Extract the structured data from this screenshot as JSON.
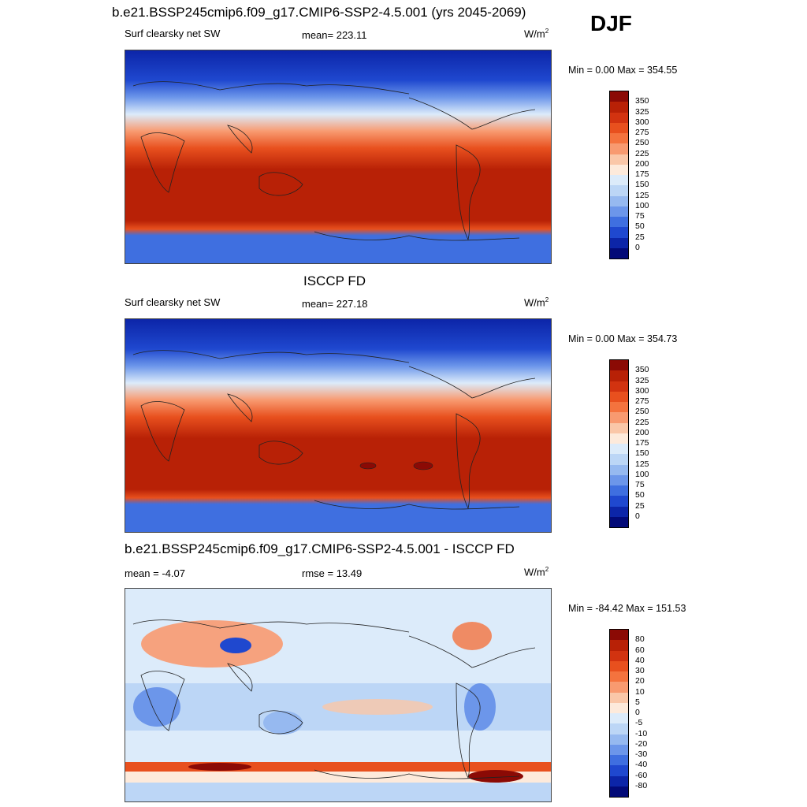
{
  "season": "DJF",
  "panels": [
    {
      "title": "b.e21.BSSP245cmip6.f09_g17.CMIP6-SSP2-4.5.001 (yrs 2045-2069)",
      "left_label": "Surf clearsky net SW",
      "mid_label": "mean= 223.11",
      "units": "W/m",
      "units_sup": "2",
      "minmax": "Min =   0.00 Max = 354.55",
      "colorbar_ticks": [
        "350",
        "325",
        "300",
        "275",
        "250",
        "225",
        "200",
        "175",
        "150",
        "125",
        "100",
        "75",
        "50",
        "25",
        "0"
      ],
      "colorbar_colors": [
        "#8b0a05",
        "#b82106",
        "#d23310",
        "#e8501e",
        "#f4733e",
        "#f89a70",
        "#fac7a8",
        "#fdeadb",
        "#dcebfa",
        "#bcd6f6",
        "#96b9f0",
        "#6c96ea",
        "#3f6fe0",
        "#1f48cf",
        "#0c25a8",
        "#020a78"
      ]
    },
    {
      "title": "ISCCP FD",
      "left_label": "Surf clearsky net SW",
      "mid_label": "mean= 227.18",
      "units": "W/m",
      "units_sup": "2",
      "minmax": "Min =   0.00 Max = 354.73",
      "colorbar_ticks": [
        "350",
        "325",
        "300",
        "275",
        "250",
        "225",
        "200",
        "175",
        "150",
        "125",
        "100",
        "75",
        "50",
        "25",
        "0"
      ],
      "colorbar_colors": [
        "#8b0a05",
        "#b82106",
        "#d23310",
        "#e8501e",
        "#f4733e",
        "#f89a70",
        "#fac7a8",
        "#fdeadb",
        "#dcebfa",
        "#bcd6f6",
        "#96b9f0",
        "#6c96ea",
        "#3f6fe0",
        "#1f48cf",
        "#0c25a8",
        "#020a78"
      ]
    },
    {
      "title": "b.e21.BSSP245cmip6.f09_g17.CMIP6-SSP2-4.5.001 - ISCCP FD",
      "left_label": "mean =  -4.07",
      "mid_label": "rmse =  13.49",
      "units": "W/m",
      "units_sup": "2",
      "minmax": "Min = -84.42 Max = 151.53",
      "colorbar_ticks": [
        "80",
        "60",
        "40",
        "30",
        "20",
        "10",
        "5",
        "0",
        "-5",
        "-10",
        "-20",
        "-30",
        "-40",
        "-60",
        "-80"
      ],
      "colorbar_colors": [
        "#8b0a05",
        "#b82106",
        "#d23310",
        "#e8501e",
        "#f4733e",
        "#f89a70",
        "#fac7a8",
        "#fdeadb",
        "#dcebfa",
        "#bcd6f6",
        "#96b9f0",
        "#6c96ea",
        "#3f6fe0",
        "#1f48cf",
        "#0c25a8",
        "#020a78"
      ]
    }
  ]
}
